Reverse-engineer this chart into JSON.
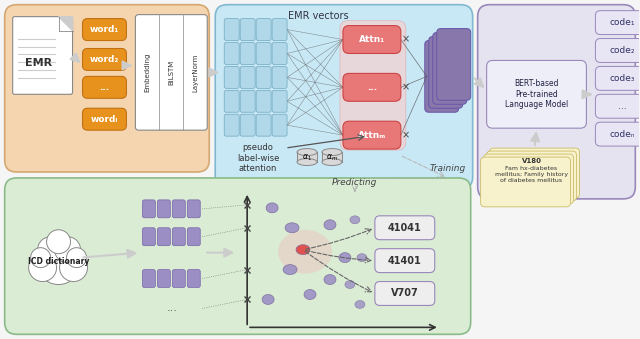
{
  "bg_color": "#f5f5f5",
  "top_left_panel_color": "#f5d5b0",
  "mid_panel_color": "#c8e8f5",
  "right_panel_color": "#e5e3ef",
  "bottom_panel_color": "#dbecd5",
  "orange_word_color": "#e8921e",
  "pink_attn_color": "#e87878",
  "pink_attn_bg": "#f5d0d0",
  "purple_stack_color": "#8877aa",
  "purple_emr_cell_color": "#b0d8e8",
  "purple_dict_color": "#9b8ec4",
  "yellow_note_color": "#f8f2cc",
  "code_box_color": "#e8e5f5",
  "bert_box_color": "#eeeef8",
  "white": "#ffffff",
  "text_dark": "#222222",
  "title_top": "EMR vectors",
  "emr_label": "EMR",
  "icd_label": "ICD dictionary",
  "bert_label": "BERT-based\nPre-trained\nLanguage Model",
  "pseudo_label": "pseudo\nlabel-wise\nattention",
  "training_label": "Training",
  "predicting_label": "Predicting",
  "note_lines": [
    "V180",
    "Fam hx-diabetes",
    "mellitus; Family history",
    "of diabetes mellitus"
  ],
  "codes": [
    "code₁",
    "code₂",
    "code₃",
    "...",
    "codeₙ"
  ],
  "words": [
    "word₁",
    "word₂",
    "...",
    "wordₗ"
  ],
  "icd_codes": [
    "41041",
    "41401",
    "V707"
  ],
  "attn_labels": [
    "Attn₁",
    "...",
    "Attnₘ"
  ],
  "emb_labels": [
    "Embedding",
    "BiLSTM",
    "LayerNorm"
  ]
}
